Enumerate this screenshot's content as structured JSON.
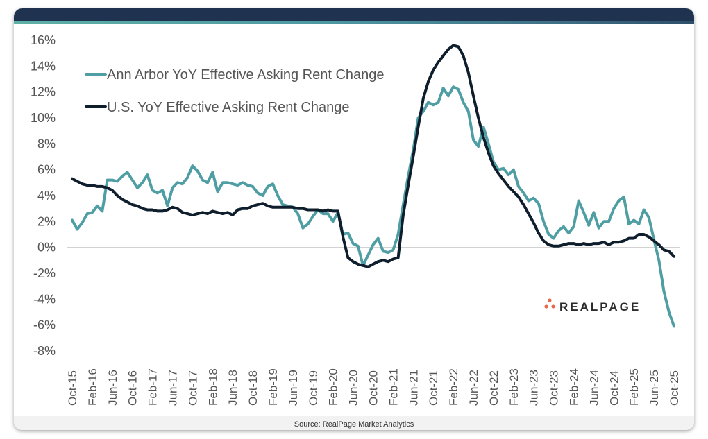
{
  "colors": {
    "ann_arbor": "#4f9ea4",
    "us": "#0f1e2d",
    "header": "#1f3350",
    "logo_dot": "#e8694a",
    "axis_text": "#555555",
    "zero_line": "#cccccc"
  },
  "footer": {
    "source": "Source: RealPage Market Analytics"
  },
  "logo": {
    "text": "REALPAGE",
    "trademark": "·"
  },
  "chart_data": {
    "type": "line",
    "title": "",
    "xlabel": "",
    "ylabel": "",
    "ylim": [
      -8,
      16
    ],
    "yticks": [
      16,
      14,
      12,
      10,
      8,
      6,
      4,
      2,
      0,
      -2,
      -4,
      -6,
      -8
    ],
    "ytick_labels": [
      "16%",
      "14%",
      "12%",
      "10%",
      "8%",
      "6%",
      "4%",
      "2%",
      "0%",
      "-2%",
      "-4%",
      "-6%",
      "-8%"
    ],
    "x_start": "Oct-15",
    "x_end": "Oct-25",
    "x_frequency": "monthly",
    "xtick_every_n_months": 4,
    "xtick_labels": [
      "Oct-15",
      "Feb-16",
      "Jun-16",
      "Oct-16",
      "Feb-17",
      "Jun-17",
      "Oct-17",
      "Feb-18",
      "Jun-18",
      "Oct-18",
      "Feb-19",
      "Jun-19",
      "Oct-19",
      "Feb-20",
      "Jun-20",
      "Oct-20",
      "Feb-21",
      "Jun-21",
      "Oct-21",
      "Feb-22",
      "Jun-22",
      "Oct-22",
      "Feb-23",
      "Jun-23",
      "Oct-23",
      "Feb-24",
      "Jun-24",
      "Oct-24",
      "Feb-25",
      "Jun-25",
      "Oct-25"
    ],
    "grid": false,
    "zero_line": true,
    "legend_position": "top-left",
    "series": [
      {
        "name": "Ann Arbor YoY Effective Asking Rent Change",
        "color_key": "ann_arbor",
        "values": [
          2.1,
          1.4,
          1.9,
          2.6,
          2.7,
          3.2,
          2.8,
          5.2,
          5.2,
          5.1,
          5.5,
          5.8,
          5.2,
          4.6,
          5.0,
          5.6,
          4.4,
          4.2,
          4.4,
          3.2,
          4.6,
          5.0,
          4.9,
          5.4,
          6.3,
          5.9,
          5.2,
          5.0,
          5.8,
          4.3,
          5.0,
          5.0,
          4.9,
          4.8,
          5.0,
          4.8,
          4.7,
          4.2,
          4.0,
          4.7,
          4.9,
          4.0,
          3.3,
          3.2,
          3.1,
          2.6,
          1.5,
          1.8,
          2.4,
          2.9,
          2.6,
          2.6,
          2.0,
          2.7,
          1.0,
          1.1,
          0.3,
          0.1,
          -1.4,
          -0.6,
          0.2,
          0.7,
          -0.3,
          -0.4,
          -0.2,
          1.0,
          3.3,
          5.5,
          7.5,
          10.0,
          10.5,
          11.2,
          11.0,
          11.2,
          12.3,
          11.7,
          12.4,
          12.2,
          11.2,
          10.5,
          8.3,
          7.8,
          9.3,
          8.0,
          6.6,
          6.0,
          6.1,
          5.6,
          6.0,
          4.7,
          4.2,
          3.6,
          3.8,
          3.4,
          2.0,
          1.0,
          0.7,
          1.3,
          1.6,
          1.1,
          1.6,
          3.6,
          2.7,
          1.7,
          2.7,
          1.5,
          2.0,
          2.0,
          3.0,
          3.6,
          3.9,
          1.8,
          2.1,
          1.8,
          2.9,
          2.3,
          0.6,
          -1.0,
          -3.4,
          -5.0,
          -6.1
        ]
      },
      {
        "name": "U.S. YoY Effective Asking Rent Change",
        "color_key": "us",
        "values": [
          5.3,
          5.1,
          4.9,
          4.8,
          4.8,
          4.7,
          4.7,
          4.6,
          4.4,
          4.0,
          3.7,
          3.5,
          3.3,
          3.2,
          3.0,
          2.9,
          2.9,
          2.8,
          2.8,
          2.9,
          3.1,
          3.0,
          2.7,
          2.6,
          2.5,
          2.6,
          2.7,
          2.6,
          2.8,
          2.7,
          2.6,
          2.7,
          2.5,
          2.9,
          3.0,
          3.0,
          3.2,
          3.3,
          3.4,
          3.2,
          3.1,
          3.1,
          3.1,
          3.1,
          3.1,
          3.0,
          3.0,
          2.9,
          2.9,
          2.9,
          2.8,
          2.9,
          2.8,
          2.8,
          0.8,
          -0.8,
          -1.1,
          -1.3,
          -1.4,
          -1.5,
          -1.3,
          -1.1,
          -1.0,
          -1.1,
          -0.9,
          -0.8,
          2.5,
          4.8,
          7.0,
          9.3,
          11.5,
          12.8,
          13.7,
          14.3,
          14.8,
          15.3,
          15.6,
          15.5,
          14.8,
          13.5,
          11.7,
          10.0,
          8.5,
          7.3,
          6.3,
          5.7,
          5.2,
          4.7,
          4.3,
          3.9,
          3.3,
          2.6,
          1.9,
          1.1,
          0.5,
          0.2,
          0.1,
          0.1,
          0.2,
          0.3,
          0.3,
          0.2,
          0.3,
          0.2,
          0.3,
          0.3,
          0.4,
          0.2,
          0.4,
          0.4,
          0.5,
          0.7,
          0.7,
          1.0,
          1.0,
          0.8,
          0.5,
          0.2,
          -0.2,
          -0.3,
          -0.7
        ]
      }
    ]
  }
}
